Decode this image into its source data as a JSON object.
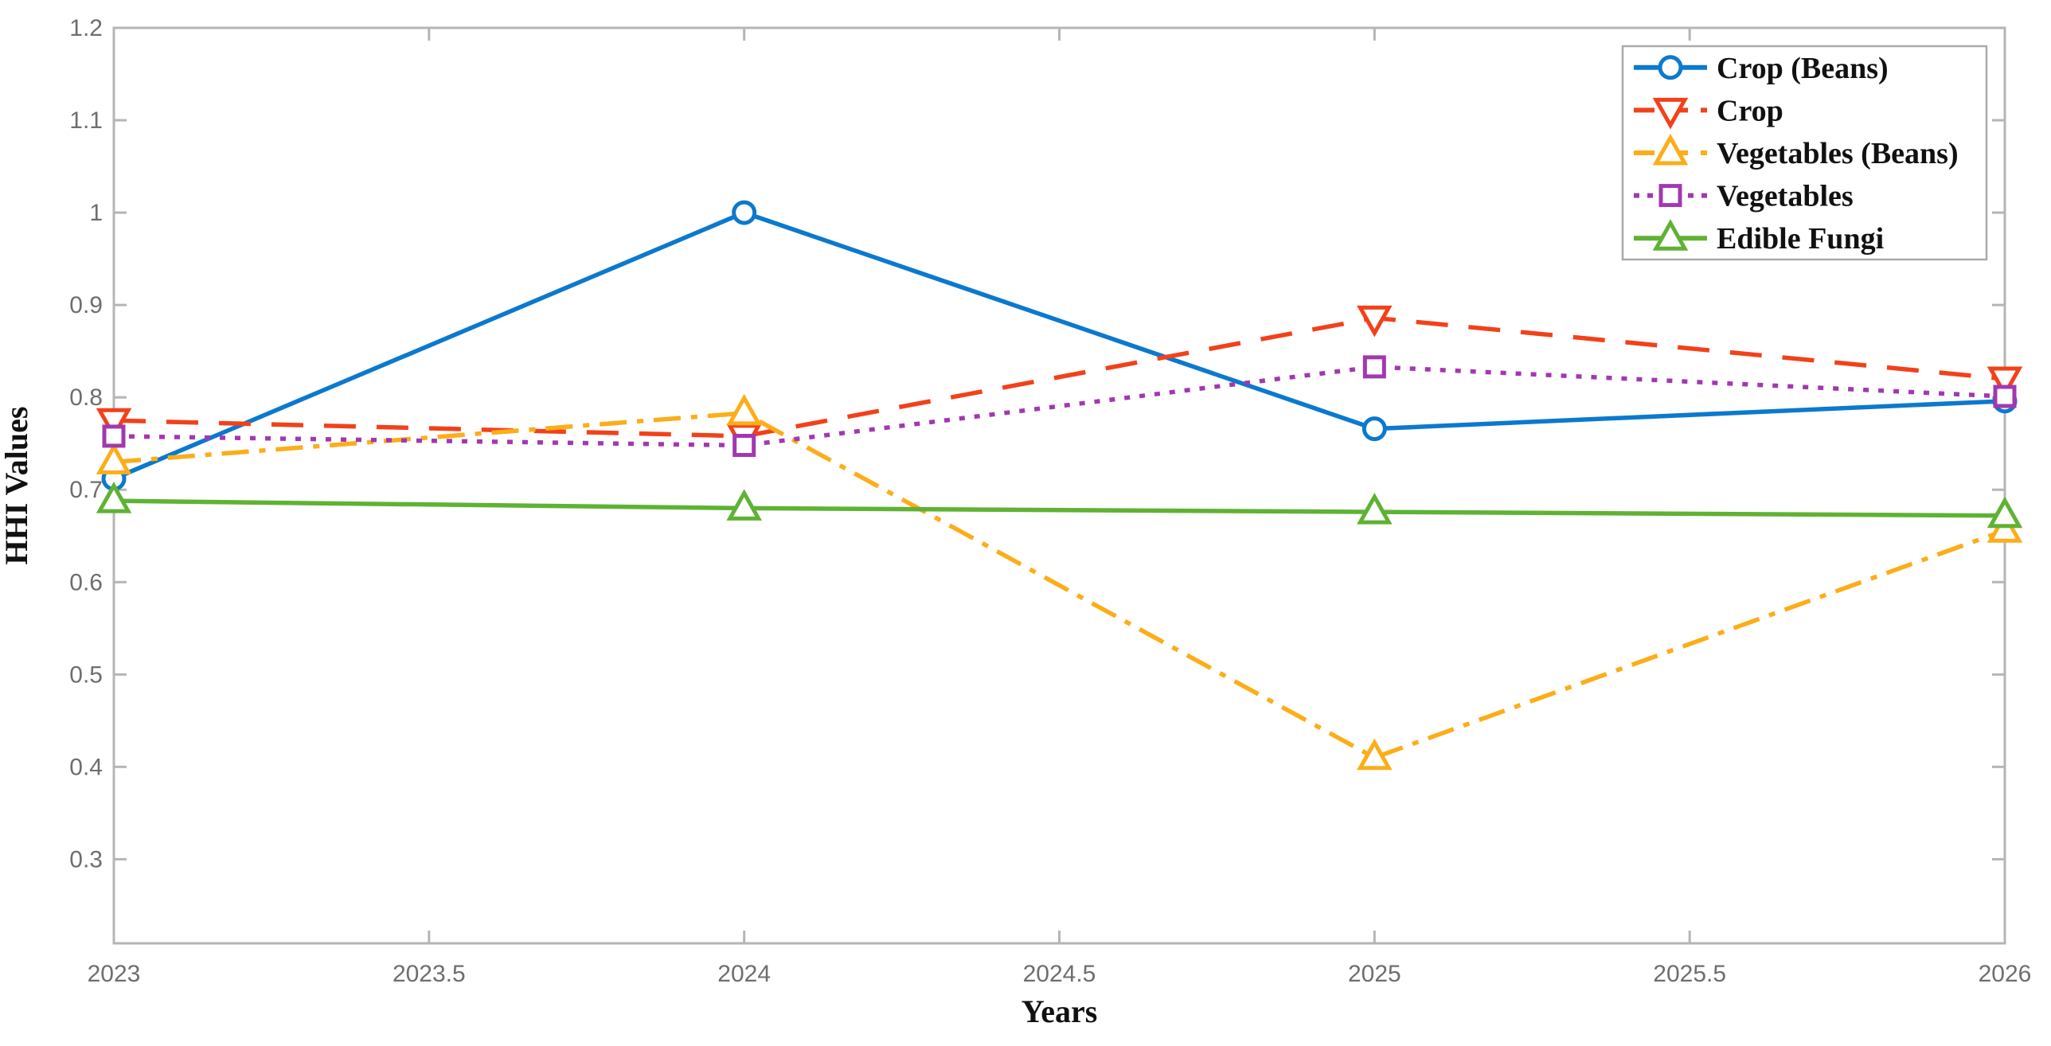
{
  "chart_data": {
    "type": "line",
    "title": "",
    "xlabel": "Years",
    "ylabel": "HHI Values",
    "x": [
      2023,
      2024,
      2025,
      2026
    ],
    "xlim": [
      2023,
      2026
    ],
    "ylim": [
      0.209,
      1.2
    ],
    "grid": false,
    "legend_position": "top-right",
    "xticks": {
      "values": [
        2023,
        2023.5,
        2024,
        2024.5,
        2025,
        2025.5,
        2026
      ],
      "labels": [
        "2023",
        "2023.5",
        "2024",
        "2024.5",
        "2025",
        "2025.5",
        "2026"
      ]
    },
    "yticks": {
      "values": [
        0.3,
        0.4,
        0.5,
        0.6,
        0.7,
        0.8,
        0.9,
        1,
        1.1,
        1.2
      ],
      "labels": [
        "0.3",
        "0.4",
        "0.5",
        "0.6",
        "0.7",
        "0.8",
        "0.9",
        "1",
        "1.1",
        "1.2"
      ]
    },
    "series": [
      {
        "name": "Crop (Beans)",
        "color": "#0B79CE",
        "linestyle": "solid",
        "marker": "circle",
        "values": [
          0.712,
          1.0,
          0.766,
          0.796
        ]
      },
      {
        "name": "Crop",
        "color": "#F2411A",
        "linestyle": "dashed",
        "marker": "triangle-down",
        "values": [
          0.775,
          0.758,
          0.886,
          0.82
        ]
      },
      {
        "name": "Vegetables (Beans)",
        "color": "#FCAD18",
        "linestyle": "dashdot",
        "marker": "triangle-up",
        "values": [
          0.73,
          0.783,
          0.41,
          0.656
        ]
      },
      {
        "name": "Vegetables",
        "color": "#A238B0",
        "linestyle": "dotted",
        "marker": "square",
        "values": [
          0.758,
          0.748,
          0.833,
          0.801
        ]
      },
      {
        "name": "Edible Fungi",
        "color": "#5FB233",
        "linestyle": "solid",
        "marker": "triangle-up",
        "values": [
          0.688,
          0.68,
          0.676,
          0.672
        ]
      }
    ],
    "axis_color": "#b5b5b5",
    "tick_label_color": "#6e6e6e",
    "text_color": "#111111"
  }
}
